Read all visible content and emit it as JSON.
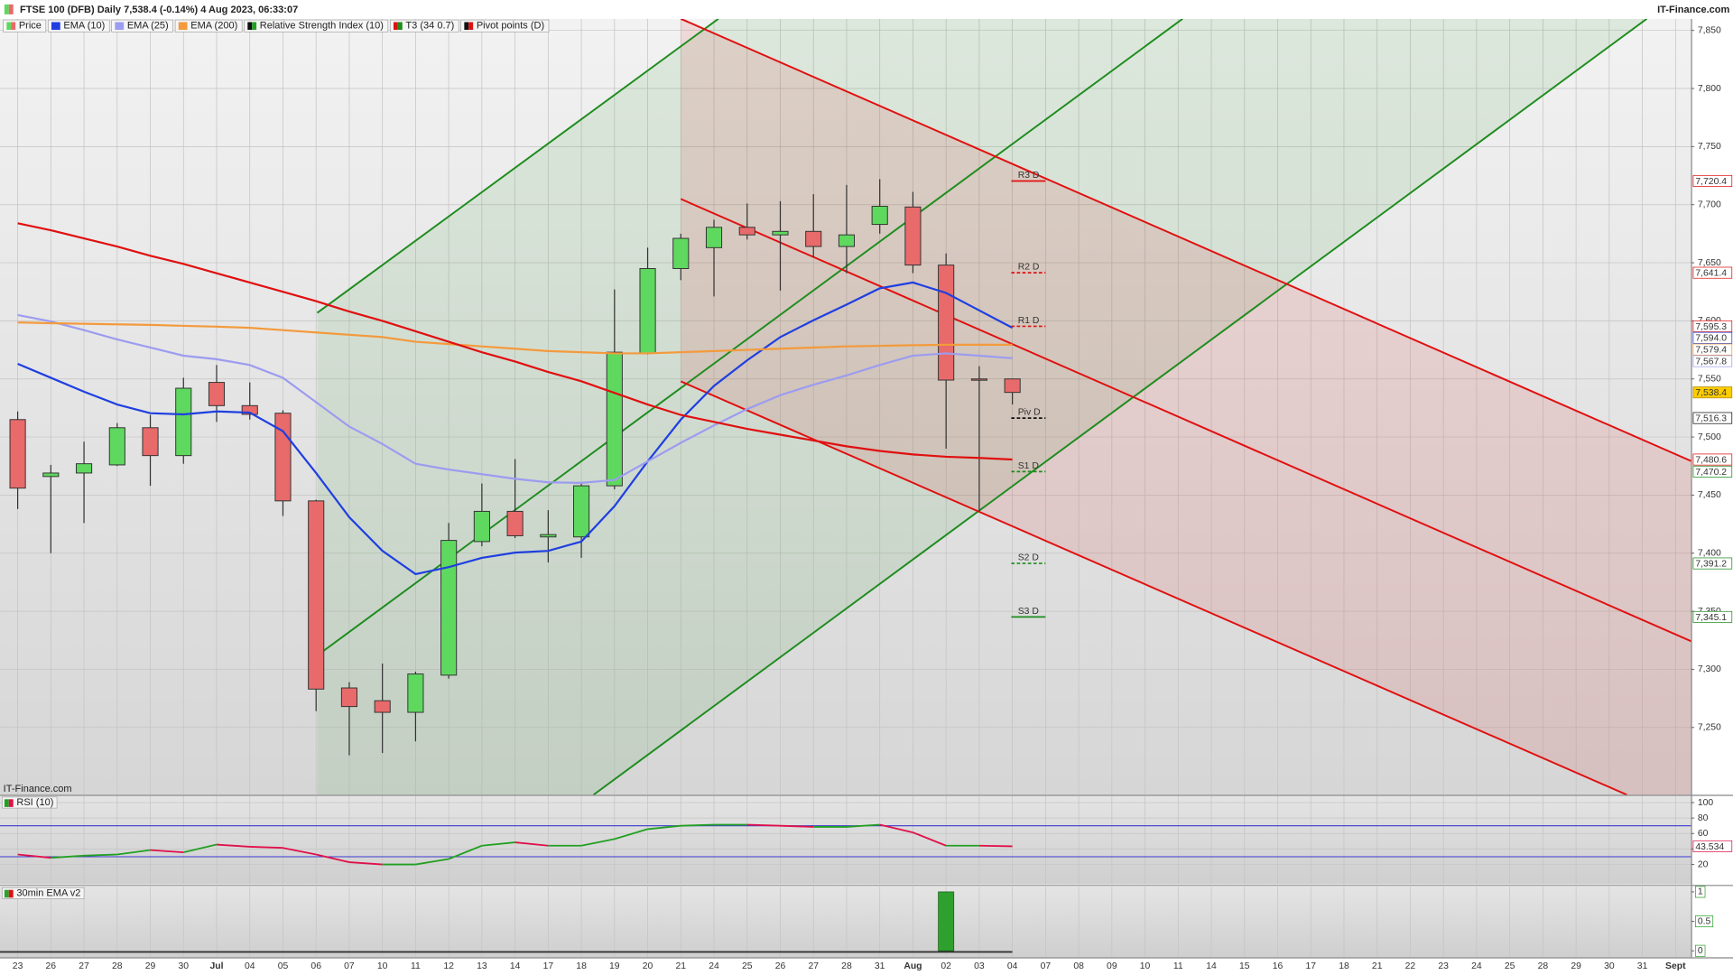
{
  "chart_data": {
    "type": "candlestick",
    "title": "FTSE 100 (DFB) Daily 7,538.4 (-0.14%) 4 Aug 2023, 06:33:07",
    "source": "IT-Finance.com",
    "categories": [
      "23",
      "26",
      "27",
      "28",
      "29",
      "30",
      "Jul",
      "04",
      "05",
      "06",
      "07",
      "10",
      "11",
      "12",
      "13",
      "14",
      "17",
      "18",
      "19",
      "20",
      "21",
      "24",
      "25",
      "26",
      "27",
      "28",
      "31",
      "Aug",
      "02",
      "03",
      "04",
      "07",
      "08",
      "09",
      "10",
      "11",
      "14",
      "15",
      "16",
      "17",
      "18",
      "21",
      "22",
      "23",
      "24",
      "25",
      "28",
      "29",
      "30",
      "31",
      "Sept"
    ],
    "ylim": [
      7192,
      7860
    ],
    "yticks": [
      {
        "value": 7250,
        "label": "7,250"
      },
      {
        "value": 7300,
        "label": "7,300"
      },
      {
        "value": 7350,
        "label": "7,350"
      },
      {
        "value": 7400,
        "label": "7,400"
      },
      {
        "value": 7450,
        "label": "7,450"
      },
      {
        "value": 7500,
        "label": "7,500"
      },
      {
        "value": 7550,
        "label": "7,550"
      },
      {
        "value": 7600,
        "label": "7,600"
      },
      {
        "value": 7650,
        "label": "7,650"
      },
      {
        "value": 7700,
        "label": "7,700"
      },
      {
        "value": 7750,
        "label": "7,750"
      },
      {
        "value": 7800,
        "label": "7,800"
      },
      {
        "value": 7850,
        "label": "7,850"
      }
    ],
    "grid": true,
    "series": [
      {
        "name": "Price",
        "type": "candlestick",
        "color_up": "#5fd85f",
        "color_down": "#e86a6a",
        "label_color": "#ffcc00",
        "open": [
          7515,
          7466,
          7469,
          7476,
          7508,
          7484,
          7547,
          7527,
          7520.5,
          7445,
          7284,
          7273,
          7263,
          7295,
          7410,
          7436,
          7414,
          7414,
          7458,
          7572,
          7645,
          7663,
          7680.5,
          7674,
          7677,
          7664,
          7683,
          7698,
          7648,
          7550,
          7550,
          null,
          null,
          null,
          null,
          null,
          null,
          null,
          null,
          null,
          null,
          null,
          null,
          null,
          null,
          null,
          null,
          null,
          null,
          null,
          null
        ],
        "high": [
          7522,
          7476,
          7496,
          7512,
          7519,
          7551,
          7562,
          7547,
          7523,
          7446,
          7289,
          7305,
          7298,
          7426,
          7460,
          7481,
          7437,
          7461,
          7627,
          7663,
          7675,
          7687,
          7701,
          7703,
          7709,
          7717,
          7722,
          7711,
          7658,
          7561,
          7550,
          null,
          null,
          null,
          null,
          null,
          null,
          null,
          null,
          null,
          null,
          null,
          null,
          null,
          null,
          null,
          null,
          null,
          null,
          null,
          null
        ],
        "low": [
          7438,
          7400,
          7426,
          7475,
          7458,
          7477,
          7513,
          7515,
          7432,
          7264,
          7226,
          7228,
          7238,
          7292,
          7406,
          7413,
          7392,
          7396,
          7455,
          7571,
          7635,
          7621,
          7670,
          7626,
          7655,
          7641,
          7675,
          7641,
          7490,
          7436,
          7528,
          null,
          null,
          null,
          null,
          null,
          null,
          null,
          null,
          null,
          null,
          null,
          null,
          null,
          null,
          null,
          null,
          null,
          null,
          null,
          null
        ],
        "close": [
          7456,
          7469,
          7477,
          7508,
          7484,
          7542,
          7527,
          7519.5,
          7445,
          7283,
          7268,
          7263,
          7296,
          7411,
          7436,
          7415,
          7416,
          7458,
          7573,
          7645,
          7671,
          7680.5,
          7674,
          7677,
          7664,
          7674,
          7698.6,
          7648,
          7549,
          7549.5,
          7538.4,
          null,
          null,
          null,
          null,
          null,
          null,
          null,
          null,
          null,
          null,
          null,
          null,
          null,
          null,
          null,
          null,
          null,
          null,
          null,
          null
        ],
        "value_labels": [
          null,
          null,
          null,
          null,
          null,
          null,
          null,
          null,
          null,
          null,
          null,
          null,
          null,
          null,
          null,
          null,
          null,
          null,
          null,
          null,
          null,
          null,
          null,
          null,
          null,
          null,
          null,
          null,
          null,
          null,
          "7,538.4",
          null,
          null,
          null,
          null,
          null,
          null,
          null,
          null,
          null,
          null,
          null,
          null,
          null,
          null,
          null,
          null,
          null,
          null,
          null,
          null
        ]
      },
      {
        "name": "EMA (10)",
        "type": "line",
        "color": "#1f3fe0",
        "values": [
          7563,
          7551,
          7539,
          7528,
          7520.5,
          7519.5,
          7522,
          7521,
          7505,
          7469,
          7431,
          7402,
          7382,
          7388,
          7396,
          7400.5,
          7402,
          7410,
          7440.5,
          7479,
          7515,
          7544,
          7566,
          7586,
          7600.5,
          7614,
          7628,
          7633,
          7624,
          7609,
          7594,
          null,
          null,
          null,
          null,
          null,
          null,
          null,
          null,
          null,
          null,
          null,
          null,
          null,
          null,
          null,
          null,
          null,
          null,
          null,
          null
        ],
        "value_labels": [
          null,
          null,
          null,
          null,
          null,
          null,
          null,
          null,
          null,
          null,
          null,
          null,
          null,
          null,
          null,
          null,
          null,
          null,
          null,
          null,
          null,
          null,
          null,
          null,
          null,
          null,
          null,
          null,
          null,
          null,
          "7,594.0",
          null,
          null,
          null,
          null,
          null,
          null,
          null,
          null,
          null,
          null,
          null,
          null,
          null,
          null,
          null,
          null,
          null,
          null,
          null,
          null
        ]
      },
      {
        "name": "EMA (25)",
        "type": "line",
        "color": "#9c9cf0",
        "values": [
          7605,
          7599.5,
          7592,
          7584,
          7577,
          7570,
          7567,
          7562,
          7551,
          7530,
          7509,
          7494,
          7477,
          7472,
          7468,
          7464,
          7461,
          7460.5,
          7463,
          7479,
          7495,
          7510,
          7524,
          7536,
          7545,
          7553,
          7562,
          7570,
          7572,
          7570,
          7567.8,
          null,
          null,
          null,
          null,
          null,
          null,
          null,
          null,
          null,
          null,
          null,
          null,
          null,
          null,
          null,
          null,
          null,
          null,
          null,
          null
        ],
        "value_labels": [
          null,
          null,
          null,
          null,
          null,
          null,
          null,
          null,
          null,
          null,
          null,
          null,
          null,
          null,
          null,
          null,
          null,
          null,
          null,
          null,
          null,
          null,
          null,
          null,
          null,
          null,
          null,
          null,
          null,
          null,
          "7,567.8",
          null,
          null,
          null,
          null,
          null,
          null,
          null,
          null,
          null,
          null,
          null,
          null,
          null,
          null,
          null,
          null,
          null,
          null,
          null,
          null
        ]
      },
      {
        "name": "EMA (200)",
        "type": "line",
        "color": "#f39a3c",
        "values": [
          7598.6,
          7598,
          7597.5,
          7597,
          7596.5,
          7595.7,
          7595,
          7594,
          7592,
          7590,
          7588,
          7586,
          7582,
          7580,
          7578,
          7576,
          7574,
          7573,
          7572,
          7572,
          7573,
          7574,
          7575,
          7576,
          7577,
          7578,
          7578.5,
          7579,
          7579.4,
          7579.4,
          7579.4,
          null,
          null,
          null,
          null,
          null,
          null,
          null,
          null,
          null,
          null,
          null,
          null,
          null,
          null,
          null,
          null,
          null,
          null,
          null,
          null
        ],
        "value_labels": [
          null,
          null,
          null,
          null,
          null,
          null,
          null,
          null,
          null,
          null,
          null,
          null,
          null,
          null,
          null,
          null,
          null,
          null,
          null,
          null,
          null,
          null,
          null,
          null,
          null,
          null,
          null,
          null,
          null,
          null,
          "7,579.4",
          null,
          null,
          null,
          null,
          null,
          null,
          null,
          null,
          null,
          null,
          null,
          null,
          null,
          null,
          null,
          null,
          null,
          null,
          null,
          null
        ]
      },
      {
        "name": "T3 (34 0.7)",
        "type": "line",
        "color": "#e01010",
        "values": [
          7684,
          7678,
          7671,
          7664,
          7656,
          7649,
          7641,
          7633,
          7625,
          7617,
          7608,
          7600,
          7591,
          7582,
          7573,
          7565,
          7556,
          7548,
          7538,
          7528,
          7519,
          7513,
          7507,
          7502,
          7497,
          7492,
          7488,
          7485,
          7483,
          7482,
          7480.6,
          null,
          null,
          null,
          null,
          null,
          null,
          null,
          null,
          null,
          null,
          null,
          null,
          null,
          null,
          null,
          null,
          null,
          null,
          null,
          null
        ],
        "value_labels": [
          null,
          null,
          null,
          null,
          null,
          null,
          null,
          null,
          null,
          null,
          null,
          null,
          null,
          null,
          null,
          null,
          null,
          null,
          null,
          null,
          null,
          null,
          null,
          null,
          null,
          null,
          null,
          null,
          null,
          null,
          "7,480.6",
          null,
          null,
          null,
          null,
          null,
          null,
          null,
          null,
          null,
          null,
          null,
          null,
          null,
          null,
          null,
          null,
          null,
          null,
          null,
          null
        ]
      }
    ],
    "pivot_points": {
      "name": "Pivot points (D)",
      "color": "#111111",
      "levels": [
        "R3 D",
        "R2 D",
        "R1 D",
        "Piv D",
        "S1 D",
        "S2 D",
        "S3 D"
      ],
      "values": [
        7720.4,
        7641.4,
        7595.3,
        7516.3,
        7470.2,
        7391.2,
        7345.1
      ],
      "value_labels": [
        "7,720.4",
        "7,641.4",
        "7,595.3",
        "7,516.3",
        "7,470.2",
        "7,391.2",
        "7,345.1"
      ],
      "colors": [
        "#e01010",
        "#e01010",
        "#e01010",
        "#111111",
        "#1e8c1e",
        "#1e8c1e",
        "#1e8c1e"
      ],
      "styles": [
        "solid",
        "dashed",
        "dashed",
        "dashed",
        "dashed",
        "dashed",
        "solid"
      ]
    },
    "subplots": [
      {
        "type": "line",
        "name": "Relative Strength Index (10)",
        "title": "RSI (10)",
        "color_up": "#22a022",
        "color_down": "#e0104a",
        "values": [
          32.9,
          28.6,
          31.4,
          32.9,
          38.6,
          35.7,
          45.7,
          42.9,
          41.4,
          32.9,
          22.9,
          20,
          20,
          27.1,
          44.3,
          48.6,
          44.3,
          44.3,
          52.9,
          65.7,
          70,
          71.4,
          71.4,
          70,
          68.6,
          68.6,
          71.4,
          61.4,
          44.3,
          44.3,
          43.534,
          null,
          null,
          null,
          null,
          null,
          null,
          null,
          null,
          null,
          null,
          null,
          null,
          null,
          null,
          null,
          null,
          null,
          null,
          null,
          null
        ],
        "levels": [
          30,
          70
        ],
        "level_color": "#3a3ad0",
        "ylim": [
          -5.7,
          108.6
        ],
        "yticks": [
          20,
          40,
          60,
          80,
          100
        ]
      },
      {
        "type": "bar",
        "title": "30min EMA v2",
        "color": "#2ea02e",
        "values": [
          0,
          0,
          0,
          0,
          0,
          0,
          0,
          0,
          0,
          0,
          0,
          0,
          0,
          0,
          0,
          0,
          0,
          0,
          0,
          0,
          0,
          0,
          0,
          0,
          0,
          0,
          0,
          0,
          1,
          0,
          0,
          null,
          null,
          null,
          null,
          null,
          null,
          null,
          null,
          null,
          null,
          null,
          null,
          null,
          null,
          null,
          null,
          null,
          null,
          null,
          null
        ],
        "ylim": [
          -0.11,
          1.09
        ],
        "yticks": [
          0,
          0.5,
          1
        ]
      }
    ]
  }
}
